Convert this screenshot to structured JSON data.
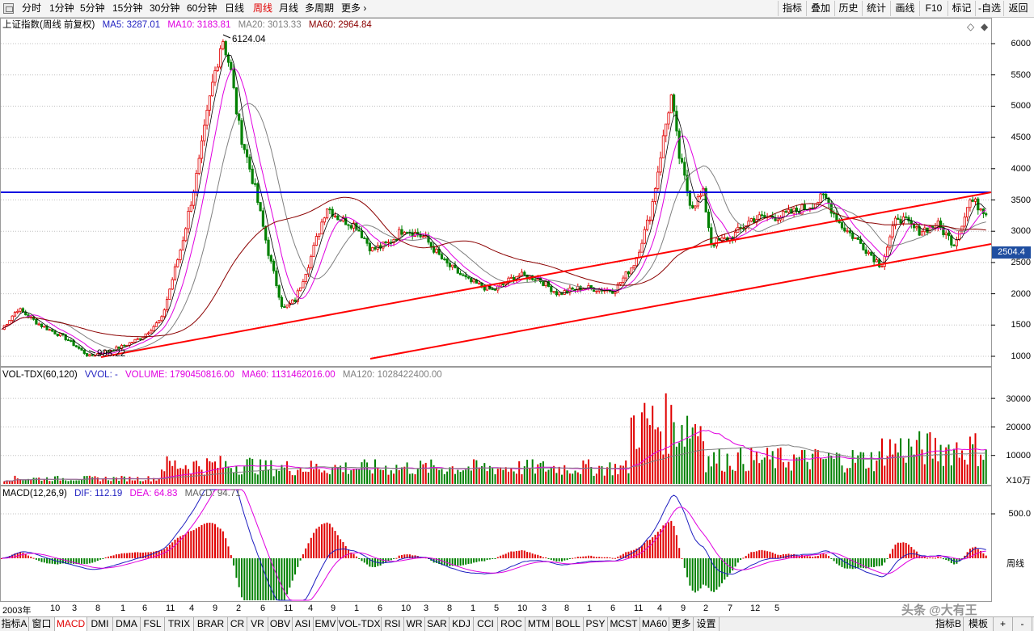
{
  "toolbar": {
    "periods": [
      "分时",
      "1分钟",
      "5分钟",
      "15分钟",
      "30分钟",
      "60分钟",
      "日线",
      "周线",
      "月线",
      "多周期",
      "更多"
    ],
    "active_period": "周线",
    "right_buttons": [
      "指标",
      "叠加",
      "历史",
      "统计",
      "画线",
      "F10",
      "标记",
      "-自选",
      "返回"
    ]
  },
  "price_panel": {
    "title": "上证指数(周线 前复权)",
    "ma5": "MA5: 3287.01",
    "ma10": "MA10: 3183.81",
    "ma20": "MA20: 3013.33",
    "ma60": "MA60: 2964.84",
    "high_label": "6124.04",
    "low_label": "998.22",
    "price_tag": "2504.4",
    "axis_labels": [
      "6000",
      "5500",
      "5000",
      "4500",
      "4000",
      "3500",
      "3000",
      "2500",
      "2000",
      "1500",
      "1000"
    ]
  },
  "volume_panel": {
    "title": "VOL-TDX(60,120)",
    "vvol": "VVOL: -",
    "volume": "VOLUME: 1790450816.00",
    "ma60": "MA60: 1131462016.00",
    "ma120": "MA120: 1028422400.00",
    "axis_labels": [
      "30000",
      "20000",
      "10000"
    ],
    "unit": "X10万"
  },
  "macd_panel": {
    "title": "MACD(12,26,9)",
    "dif": "DIF: 112.19",
    "dea": "DEA: 64.83",
    "macd": "MACD: 94.71",
    "axis_label": "500.0",
    "side_label": "周线"
  },
  "time_axis": [
    "2003年",
    "10",
    "3",
    "8",
    "1",
    "6",
    "11",
    "4",
    "9",
    "2",
    "6",
    "11",
    "4",
    "9",
    "1",
    "6",
    "10",
    "3",
    "8",
    "1",
    "5",
    "10",
    "3",
    "8",
    "1",
    "6",
    "11",
    "4",
    "9",
    "2",
    "7",
    "12",
    "5"
  ],
  "bottom_tabs": [
    "指标A",
    "窗口",
    "MACD",
    "DMI",
    "DMA",
    "FSL",
    "TRIX",
    "BRAR",
    "CR",
    "VR",
    "OBV",
    "ASI",
    "EMV",
    "VOL-TDX",
    "RSI",
    "WR",
    "SAR",
    "KDJ",
    "CCI",
    "ROC",
    "MTM",
    "BOLL",
    "PSY",
    "MCST",
    "MA60",
    "更多",
    "设置"
  ],
  "active_tab": "MACD",
  "bottom_right_tabs": [
    "指标B",
    "模板",
    "+",
    "-"
  ],
  "watermark": "头条 @大有王",
  "colors": {
    "ma5": "#000000",
    "ma10": "#e000e0",
    "ma20": "#808080",
    "ma60": "#8b0000",
    "up": "#e00000",
    "down": "#008000",
    "resistance": "#0000e0",
    "trend": "#ff0000"
  }
}
